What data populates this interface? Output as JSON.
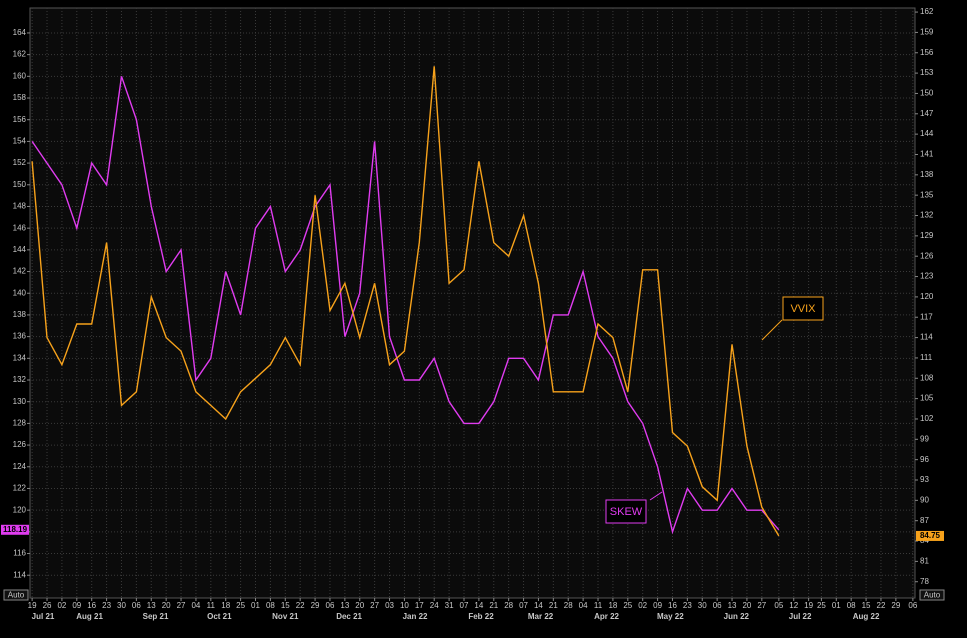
{
  "chart_data": {
    "type": "line",
    "x": [
      "2021-07-19",
      "2021-07-26",
      "2021-08-02",
      "2021-08-09",
      "2021-08-16",
      "2021-08-23",
      "2021-08-30",
      "2021-09-06",
      "2021-09-13",
      "2021-09-20",
      "2021-09-27",
      "2021-10-04",
      "2021-10-11",
      "2021-10-18",
      "2021-10-25",
      "2021-11-01",
      "2021-11-08",
      "2021-11-15",
      "2021-11-22",
      "2021-11-29",
      "2021-12-06",
      "2021-12-13",
      "2021-12-20",
      "2021-12-27",
      "2022-01-03",
      "2022-01-10",
      "2022-01-17",
      "2022-01-24",
      "2022-01-31",
      "2022-02-07",
      "2022-02-14",
      "2022-02-21",
      "2022-02-28",
      "2022-03-07",
      "2022-03-14",
      "2022-03-21",
      "2022-03-28",
      "2022-04-04",
      "2022-04-11",
      "2022-04-18",
      "2022-04-25",
      "2022-05-02",
      "2022-05-09",
      "2022-05-16",
      "2022-05-23",
      "2022-05-30",
      "2022-06-06",
      "2022-06-13",
      "2022-06-20",
      "2022-06-27",
      "2022-07-05"
    ],
    "series": [
      {
        "name": "SKEW",
        "color": "#e03cf0",
        "axis": "y",
        "values": [
          154,
          152,
          150,
          146,
          152,
          150,
          160,
          156,
          148,
          142,
          144,
          132,
          134,
          142,
          138,
          146,
          148,
          142,
          144,
          148,
          150,
          136,
          140,
          154,
          136,
          132,
          132,
          134,
          130,
          128,
          128,
          130,
          134,
          134,
          132,
          138,
          138,
          142,
          136,
          134,
          130,
          128,
          124,
          118,
          122,
          120,
          120,
          122,
          120,
          120,
          118.19
        ]
      },
      {
        "name": "VVIX",
        "color": "#f7a21b",
        "axis": "y2",
        "values": [
          140,
          114,
          110,
          116,
          116,
          128,
          104,
          106,
          120,
          114,
          112,
          106,
          104,
          102,
          106,
          108,
          110,
          114,
          110,
          135,
          118,
          122,
          114,
          122,
          110,
          112,
          128,
          154,
          122,
          124,
          140,
          128,
          126,
          132,
          122,
          106,
          106,
          106,
          116,
          114,
          106,
          124,
          124,
          100,
          98,
          92,
          90,
          113,
          98,
          89,
          84.75
        ]
      }
    ],
    "xlim": [
      "2021-07-18",
      "2022-09-07"
    ],
    "xticks": [
      {
        "value": "2021-07-19",
        "label": "19"
      },
      {
        "value": "2021-07-26",
        "label": "26"
      },
      {
        "value": "2021-08-02",
        "label": "02"
      },
      {
        "value": "2021-08-09",
        "label": "09"
      },
      {
        "value": "2021-08-16",
        "label": "16"
      },
      {
        "value": "2021-08-23",
        "label": "23"
      },
      {
        "value": "2021-08-30",
        "label": "30"
      },
      {
        "value": "2021-09-06",
        "label": "06"
      },
      {
        "value": "2021-09-13",
        "label": "13"
      },
      {
        "value": "2021-09-20",
        "label": "20"
      },
      {
        "value": "2021-09-27",
        "label": "27"
      },
      {
        "value": "2021-10-04",
        "label": "04"
      },
      {
        "value": "2021-10-11",
        "label": "11"
      },
      {
        "value": "2021-10-18",
        "label": "18"
      },
      {
        "value": "2021-10-25",
        "label": "25"
      },
      {
        "value": "2021-11-01",
        "label": "01"
      },
      {
        "value": "2021-11-08",
        "label": "08"
      },
      {
        "value": "2021-11-15",
        "label": "15"
      },
      {
        "value": "2021-11-22",
        "label": "22"
      },
      {
        "value": "2021-11-29",
        "label": "29"
      },
      {
        "value": "2021-12-06",
        "label": "06"
      },
      {
        "value": "2021-12-13",
        "label": "13"
      },
      {
        "value": "2021-12-20",
        "label": "20"
      },
      {
        "value": "2021-12-27",
        "label": "27"
      },
      {
        "value": "2022-01-03",
        "label": "03"
      },
      {
        "value": "2022-01-10",
        "label": "10"
      },
      {
        "value": "2022-01-17",
        "label": "17"
      },
      {
        "value": "2022-01-24",
        "label": "24"
      },
      {
        "value": "2022-01-31",
        "label": "31"
      },
      {
        "value": "2022-02-07",
        "label": "07"
      },
      {
        "value": "2022-02-14",
        "label": "14"
      },
      {
        "value": "2022-02-21",
        "label": "21"
      },
      {
        "value": "2022-02-28",
        "label": "28"
      },
      {
        "value": "2022-03-07",
        "label": "07"
      },
      {
        "value": "2022-03-14",
        "label": "14"
      },
      {
        "value": "2022-03-21",
        "label": "21"
      },
      {
        "value": "2022-03-28",
        "label": "28"
      },
      {
        "value": "2022-04-04",
        "label": "04"
      },
      {
        "value": "2022-04-11",
        "label": "11"
      },
      {
        "value": "2022-04-18",
        "label": "18"
      },
      {
        "value": "2022-04-25",
        "label": "25"
      },
      {
        "value": "2022-05-02",
        "label": "02"
      },
      {
        "value": "2022-05-09",
        "label": "09"
      },
      {
        "value": "2022-05-16",
        "label": "16"
      },
      {
        "value": "2022-05-23",
        "label": "23"
      },
      {
        "value": "2022-05-30",
        "label": "30"
      },
      {
        "value": "2022-06-06",
        "label": "06"
      },
      {
        "value": "2022-06-13",
        "label": "13"
      },
      {
        "value": "2022-06-20",
        "label": "20"
      },
      {
        "value": "2022-06-27",
        "label": "27"
      },
      {
        "value": "2022-07-05",
        "label": "05"
      },
      {
        "value": "2022-07-12",
        "label": "12"
      },
      {
        "value": "2022-07-19",
        "label": "19"
      },
      {
        "value": "2022-07-25",
        "label": "25"
      },
      {
        "value": "2022-08-01",
        "label": "01"
      },
      {
        "value": "2022-08-08",
        "label": "08"
      },
      {
        "value": "2022-08-15",
        "label": "15"
      },
      {
        "value": "2022-08-22",
        "label": "22"
      },
      {
        "value": "2022-08-29",
        "label": "29"
      },
      {
        "value": "2022-09-06",
        "label": "06"
      }
    ],
    "month_labels": [
      {
        "value": "2021-07-15",
        "label": "Jul 21"
      },
      {
        "value": "2021-08-15",
        "label": "Aug 21"
      },
      {
        "value": "2021-09-15",
        "label": "Sep 21"
      },
      {
        "value": "2021-10-15",
        "label": "Oct 21"
      },
      {
        "value": "2021-11-15",
        "label": "Nov 21"
      },
      {
        "value": "2021-12-15",
        "label": "Dec 21"
      },
      {
        "value": "2022-01-15",
        "label": "Jan 22"
      },
      {
        "value": "2022-02-15",
        "label": "Feb 22"
      },
      {
        "value": "2022-03-15",
        "label": "Mar 22"
      },
      {
        "value": "2022-04-15",
        "label": "Apr 22"
      },
      {
        "value": "2022-05-15",
        "label": "May 22"
      },
      {
        "value": "2022-06-15",
        "label": "Jun 22"
      },
      {
        "value": "2022-07-15",
        "label": "Jul 22"
      },
      {
        "value": "2022-08-15",
        "label": "Aug 22"
      }
    ],
    "ylim": [
      111.9,
      166.3
    ],
    "yticks": [
      114,
      116,
      118,
      120,
      122,
      124,
      126,
      128,
      130,
      132,
      134,
      136,
      138,
      140,
      142,
      144,
      146,
      148,
      150,
      152,
      154,
      156,
      158,
      160,
      162,
      164
    ],
    "y2lim": [
      75.6,
      162.6
    ],
    "y2ticks": [
      78,
      81,
      84,
      87,
      90,
      93,
      96,
      99,
      102,
      105,
      108,
      111,
      114,
      117,
      120,
      123,
      126,
      129,
      132,
      135,
      138,
      141,
      144,
      147,
      150,
      153,
      156,
      159,
      162
    ],
    "grid": true,
    "annotations": [
      {
        "text": "VVIX",
        "series": 1
      },
      {
        "text": "SKEW",
        "series": 0
      }
    ]
  },
  "controls": [
    "Auto",
    "Auto"
  ]
}
